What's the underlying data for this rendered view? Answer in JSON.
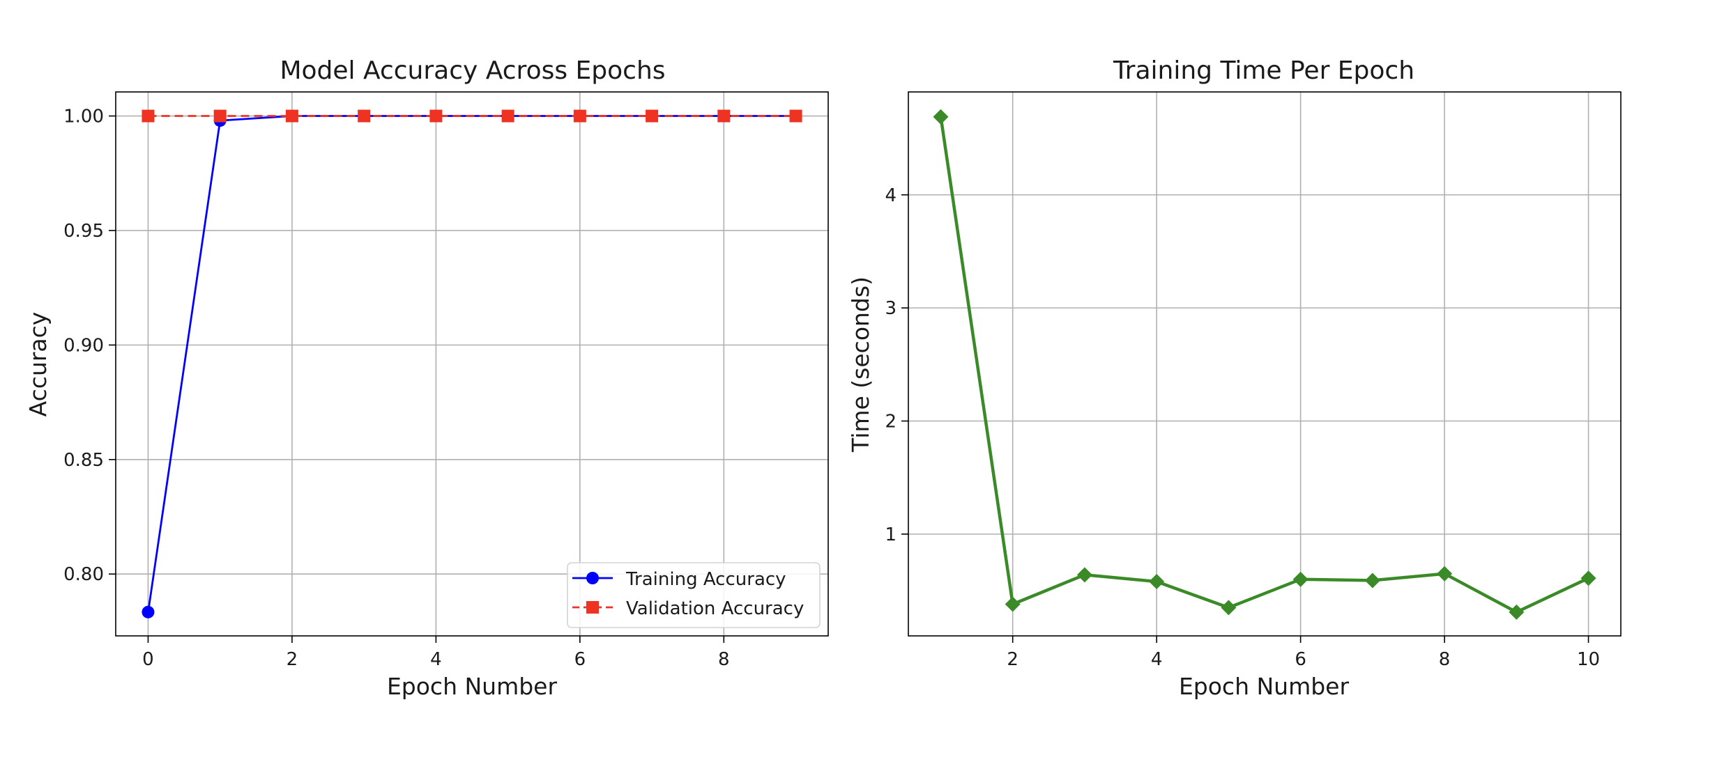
{
  "chart_data": [
    {
      "type": "line",
      "title": "Model Accuracy Across Epochs",
      "xlabel": "Epoch Number",
      "ylabel": "Accuracy",
      "xlim": [
        -0.45,
        9.45
      ],
      "ylim": [
        0.773,
        1.0105
      ],
      "xticks": [
        0,
        2,
        4,
        6,
        8
      ],
      "yticks": [
        0.8,
        0.85,
        0.9,
        0.95,
        1.0
      ],
      "ytick_labels": [
        "0.80",
        "0.85",
        "0.90",
        "0.95",
        "1.00"
      ],
      "grid": true,
      "legend_position": "lower-right",
      "x": [
        0,
        1,
        2,
        3,
        4,
        5,
        6,
        7,
        8,
        9
      ],
      "series": [
        {
          "name": "Training Accuracy",
          "color": "#0000ff",
          "linestyle": "solid",
          "marker": "circle",
          "values": [
            0.7834,
            0.998,
            1.0,
            1.0,
            1.0,
            1.0,
            1.0,
            1.0,
            1.0,
            1.0
          ]
        },
        {
          "name": "Validation Accuracy",
          "color": "#ee3322",
          "linestyle": "dashed",
          "marker": "square",
          "values": [
            1.0,
            1.0,
            1.0,
            1.0,
            1.0,
            1.0,
            1.0,
            1.0,
            1.0,
            1.0
          ]
        }
      ]
    },
    {
      "type": "line",
      "title": "Training Time Per Epoch",
      "xlabel": "Epoch Number",
      "ylabel": "Time (seconds)",
      "xlim": [
        0.55,
        10.45
      ],
      "ylim": [
        0.1,
        4.91
      ],
      "xticks": [
        2,
        4,
        6,
        8,
        10
      ],
      "yticks": [
        1,
        2,
        3,
        4
      ],
      "ytick_labels": [
        "1",
        "2",
        "3",
        "4"
      ],
      "grid": true,
      "x": [
        1,
        2,
        3,
        4,
        5,
        6,
        7,
        8,
        9,
        10
      ],
      "series": [
        {
          "name": "Training Time",
          "color": "#3a8a28",
          "linestyle": "solid",
          "marker": "diamond",
          "values": [
            4.69,
            0.38,
            0.64,
            0.58,
            0.35,
            0.6,
            0.59,
            0.65,
            0.31,
            0.61
          ]
        }
      ]
    }
  ]
}
